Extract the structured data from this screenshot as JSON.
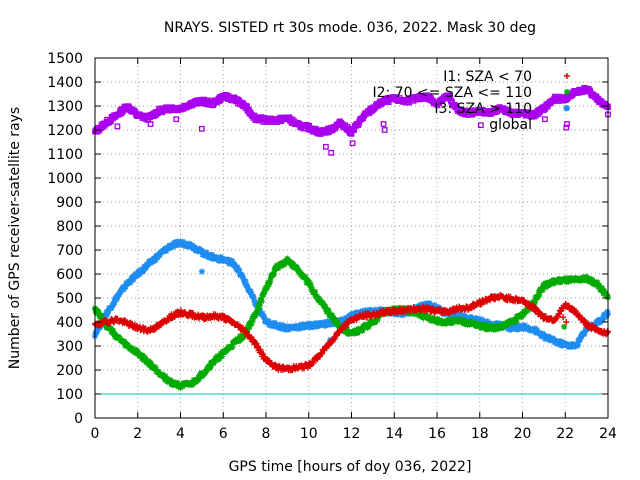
{
  "chart_data": {
    "type": "scatter",
    "title": "NRAYS. SISTED rt 30s mode. 036, 2022. Mask 30 deg",
    "xlabel": "GPS time [hours of doy 036, 2022]",
    "ylabel": "Number of GPS receiver-satellite rays",
    "xlim": [
      0,
      24
    ],
    "ylim": [
      0,
      1500
    ],
    "xticks": [
      "0",
      "2",
      "4",
      "6",
      "8",
      "10",
      "12",
      "14",
      "16",
      "18",
      "20",
      "22",
      "24"
    ],
    "yticks": [
      "0",
      "100",
      "200",
      "300",
      "400",
      "500",
      "600",
      "700",
      "800",
      "900",
      "1000",
      "1100",
      "1200",
      "1300",
      "1400",
      "1500"
    ],
    "grid": true,
    "legend_position": "top-right",
    "reference_line": {
      "y": 100,
      "color": "#00c0c0"
    },
    "series": [
      {
        "name": "I1: SZA < 70",
        "color": "#dd0000",
        "marker": "plus",
        "points": [
          [
            0,
            385
          ],
          [
            0.5,
            400
          ],
          [
            1,
            410
          ],
          [
            1.5,
            395
          ],
          [
            2,
            375
          ],
          [
            2.5,
            365
          ],
          [
            3,
            385
          ],
          [
            3.5,
            420
          ],
          [
            4,
            440
          ],
          [
            4.5,
            430
          ],
          [
            5,
            420
          ],
          [
            5.5,
            425
          ],
          [
            6,
            420
          ],
          [
            6.5,
            395
          ],
          [
            7,
            365
          ],
          [
            7.5,
            310
          ],
          [
            8,
            240
          ],
          [
            8.5,
            210
          ],
          [
            9,
            205
          ],
          [
            9.5,
            210
          ],
          [
            10,
            220
          ],
          [
            10.5,
            260
          ],
          [
            11,
            315
          ],
          [
            11.5,
            370
          ],
          [
            12,
            410
          ],
          [
            12.5,
            425
          ],
          [
            13,
            430
          ],
          [
            13.5,
            440
          ],
          [
            14,
            445
          ],
          [
            14.5,
            450
          ],
          [
            15,
            455
          ],
          [
            15.5,
            455
          ],
          [
            16,
            445
          ],
          [
            16.5,
            445
          ],
          [
            17,
            455
          ],
          [
            17.5,
            460
          ],
          [
            18,
            480
          ],
          [
            18.5,
            500
          ],
          [
            19,
            505
          ],
          [
            19.5,
            495
          ],
          [
            20,
            490
          ],
          [
            20.5,
            460
          ],
          [
            21,
            420
          ],
          [
            21.5,
            410
          ],
          [
            22,
            470
          ],
          [
            22.5,
            440
          ],
          [
            23,
            390
          ],
          [
            23.5,
            365
          ],
          [
            24,
            355
          ]
        ]
      },
      {
        "name": "I2: 70 <= SZA <= 110",
        "color": "#00aa00",
        "marker": "star",
        "points": [
          [
            0,
            460
          ],
          [
            0.5,
            390
          ],
          [
            1,
            340
          ],
          [
            1.5,
            300
          ],
          [
            2,
            270
          ],
          [
            2.5,
            230
          ],
          [
            3,
            190
          ],
          [
            3.5,
            150
          ],
          [
            4,
            135
          ],
          [
            4.5,
            140
          ],
          [
            5,
            180
          ],
          [
            5.5,
            230
          ],
          [
            6,
            270
          ],
          [
            6.5,
            310
          ],
          [
            7,
            350
          ],
          [
            7.5,
            430
          ],
          [
            8,
            540
          ],
          [
            8.5,
            630
          ],
          [
            9,
            655
          ],
          [
            9.5,
            620
          ],
          [
            10,
            560
          ],
          [
            10.5,
            490
          ],
          [
            11,
            430
          ],
          [
            11.5,
            375
          ],
          [
            12,
            350
          ],
          [
            12.5,
            370
          ],
          [
            13,
            400
          ],
          [
            13.5,
            440
          ],
          [
            14,
            450
          ],
          [
            14.5,
            450
          ],
          [
            15,
            440
          ],
          [
            15.5,
            420
          ],
          [
            16,
            405
          ],
          [
            16.5,
            400
          ],
          [
            17,
            405
          ],
          [
            17.5,
            395
          ],
          [
            18,
            385
          ],
          [
            18.5,
            375
          ],
          [
            19,
            380
          ],
          [
            19.5,
            400
          ],
          [
            20,
            430
          ],
          [
            20.5,
            480
          ],
          [
            21,
            550
          ],
          [
            21.5,
            570
          ],
          [
            22,
            575
          ],
          [
            22.5,
            575
          ],
          [
            23,
            580
          ],
          [
            23.5,
            560
          ],
          [
            24,
            500
          ]
        ]
      },
      {
        "name": "I3: SZA > 110",
        "color": "#1e8cf0",
        "marker": "star",
        "points": [
          [
            0,
            350
          ],
          [
            0.5,
            430
          ],
          [
            1,
            500
          ],
          [
            1.5,
            560
          ],
          [
            2,
            600
          ],
          [
            2.5,
            640
          ],
          [
            3,
            680
          ],
          [
            3.5,
            715
          ],
          [
            4,
            730
          ],
          [
            4.5,
            720
          ],
          [
            5,
            690
          ],
          [
            5.5,
            670
          ],
          [
            6,
            660
          ],
          [
            6.5,
            645
          ],
          [
            7,
            570
          ],
          [
            7.5,
            480
          ],
          [
            8,
            400
          ],
          [
            8.5,
            385
          ],
          [
            9,
            375
          ],
          [
            9.5,
            380
          ],
          [
            10,
            385
          ],
          [
            10.5,
            390
          ],
          [
            11,
            395
          ],
          [
            11.5,
            400
          ],
          [
            12,
            425
          ],
          [
            12.5,
            440
          ],
          [
            13,
            445
          ],
          [
            13.5,
            445
          ],
          [
            14,
            440
          ],
          [
            14.5,
            435
          ],
          [
            15,
            455
          ],
          [
            15.5,
            480
          ],
          [
            16,
            455
          ],
          [
            16.5,
            435
          ],
          [
            17,
            425
          ],
          [
            17.5,
            415
          ],
          [
            18,
            405
          ],
          [
            18.5,
            390
          ],
          [
            19,
            385
          ],
          [
            19.5,
            375
          ],
          [
            20,
            380
          ],
          [
            20.5,
            370
          ],
          [
            21,
            340
          ],
          [
            21.5,
            320
          ],
          [
            22,
            305
          ],
          [
            22.5,
            300
          ],
          [
            23,
            375
          ],
          [
            23.5,
            395
          ],
          [
            24,
            440
          ]
        ]
      },
      {
        "name": "global",
        "color": "#aa00ee",
        "marker": "square",
        "points": [
          [
            0,
            1190
          ],
          [
            0.5,
            1230
          ],
          [
            1,
            1260
          ],
          [
            1.5,
            1300
          ],
          [
            2,
            1260
          ],
          [
            2.5,
            1250
          ],
          [
            3,
            1280
          ],
          [
            3.5,
            1290
          ],
          [
            4,
            1290
          ],
          [
            4.5,
            1310
          ],
          [
            5,
            1320
          ],
          [
            5.5,
            1310
          ],
          [
            6,
            1340
          ],
          [
            6.5,
            1330
          ],
          [
            7,
            1300
          ],
          [
            7.5,
            1250
          ],
          [
            8,
            1240
          ],
          [
            8.5,
            1240
          ],
          [
            9,
            1250
          ],
          [
            9.5,
            1220
          ],
          [
            10,
            1210
          ],
          [
            10.5,
            1190
          ],
          [
            11,
            1200
          ],
          [
            11.5,
            1230
          ],
          [
            12,
            1190
          ],
          [
            12.5,
            1250
          ],
          [
            13,
            1290
          ],
          [
            13.5,
            1320
          ],
          [
            14,
            1330
          ],
          [
            14.5,
            1320
          ],
          [
            15,
            1330
          ],
          [
            15.5,
            1340
          ],
          [
            16,
            1310
          ],
          [
            16.5,
            1340
          ],
          [
            17,
            1280
          ],
          [
            17.5,
            1270
          ],
          [
            18,
            1280
          ],
          [
            18.5,
            1270
          ],
          [
            19,
            1290
          ],
          [
            19.5,
            1270
          ],
          [
            20,
            1270
          ],
          [
            20.5,
            1260
          ],
          [
            21,
            1290
          ],
          [
            21.5,
            1330
          ],
          [
            22,
            1330
          ],
          [
            22.5,
            1360
          ],
          [
            23,
            1370
          ],
          [
            23.5,
            1330
          ],
          [
            24,
            1290
          ]
        ]
      }
    ],
    "outliers": {
      "I1: SZA < 70": [
        [
          21.9,
          420
        ],
        [
          22.05,
          400
        ]
      ],
      "I2: 70 <= SZA <= 110": [
        [
          0.05,
          440
        ],
        [
          21.95,
          380
        ]
      ],
      "I3: SZA > 110": [
        [
          5,
          610
        ],
        [
          11,
          325
        ],
        [
          22.05,
          1290
        ]
      ],
      "global": [
        [
          1.05,
          1215
        ],
        [
          2.6,
          1225
        ],
        [
          3.8,
          1245
        ],
        [
          5,
          1205
        ],
        [
          10.8,
          1130
        ],
        [
          11.05,
          1105
        ],
        [
          12.05,
          1145
        ],
        [
          13.5,
          1225
        ],
        [
          13.55,
          1200
        ],
        [
          18.05,
          1220
        ],
        [
          21.05,
          1245
        ],
        [
          22.05,
          1210
        ],
        [
          24,
          1265
        ]
      ]
    }
  }
}
